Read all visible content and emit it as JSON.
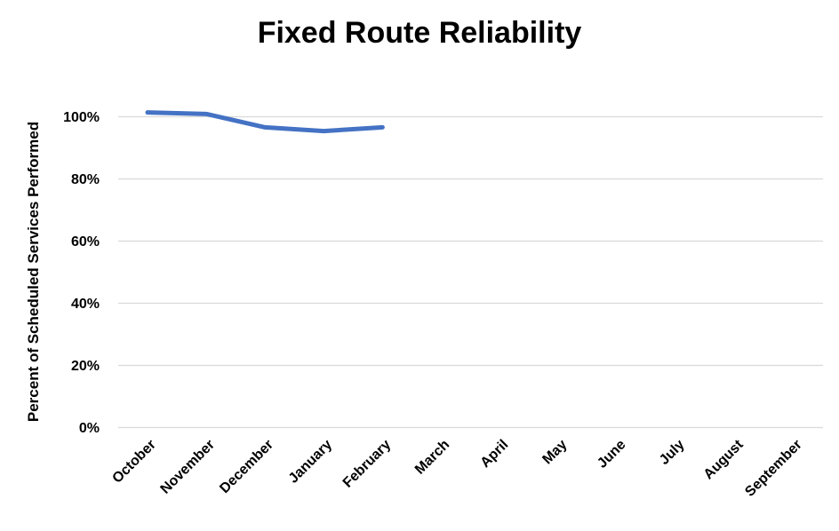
{
  "chart_data": {
    "type": "line",
    "title": "Fixed Route Reliability",
    "xlabel": "",
    "ylabel": "Percent of Scheduled Services Performed",
    "categories": [
      "October",
      "November",
      "December",
      "January",
      "February",
      "March",
      "April",
      "May",
      "June",
      "July",
      "August",
      "September"
    ],
    "values": [
      101.4,
      100.9,
      96.6,
      95.4,
      96.6,
      null,
      null,
      null,
      null,
      null,
      null,
      null
    ],
    "yticks": [
      0,
      20,
      40,
      60,
      80,
      100
    ],
    "ytick_labels": [
      "0%",
      "20%",
      "40%",
      "60%",
      "80%",
      "100%"
    ],
    "ylim": [
      0,
      110
    ],
    "grid": true,
    "legend": "none",
    "colors": {
      "line": "#4472C4",
      "gridline": "#D9D9D9",
      "text": "#000000",
      "background": "#FFFFFF"
    }
  }
}
